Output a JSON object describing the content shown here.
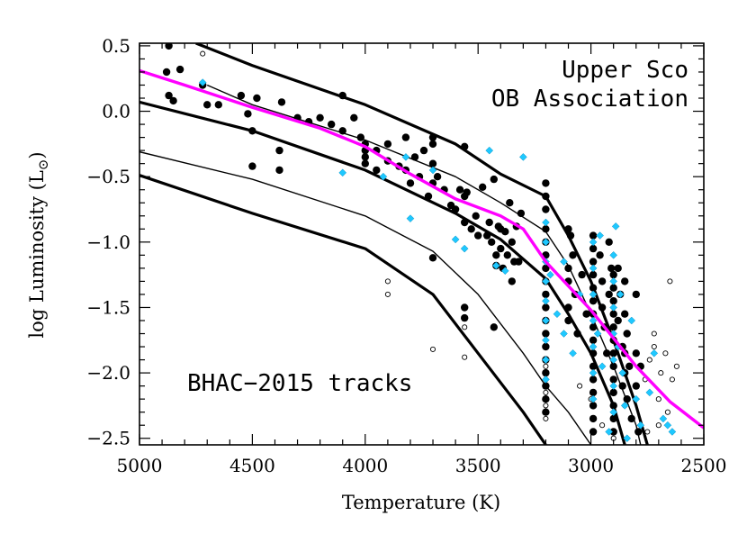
{
  "chart_data": {
    "type": "scatter",
    "title": "",
    "xlabel": "Temperature (K)",
    "ylabel_main": "log Luminosity (L",
    "ylabel_sun": "⊙",
    "ylabel_close": ")",
    "xlim": [
      5000,
      2500
    ],
    "ylim": [
      -2.55,
      0.52
    ],
    "x_reversed": true,
    "grid": false,
    "legend": "none",
    "x_ticks": [
      5000,
      4500,
      4000,
      3500,
      3000,
      2500
    ],
    "x_tick_labels": [
      "5000",
      "4500",
      "4000",
      "3500",
      "3000",
      "2500"
    ],
    "y_ticks": [
      0.5,
      0.0,
      -0.5,
      -1.0,
      -1.5,
      -2.0,
      -2.5
    ],
    "y_tick_labels": [
      "0.5",
      "0.0",
      "−0.5",
      "−1.0",
      "−1.5",
      "−2.0",
      "−2.5"
    ],
    "annotations": [
      {
        "text": "Upper Sco",
        "position": "top-right"
      },
      {
        "text": "OB Association",
        "position": "top-right"
      },
      {
        "text": "BHAC−2015 tracks",
        "position": "bottom-left"
      }
    ],
    "colors": {
      "members": "#000000",
      "diamonds": "#1ec8ff",
      "fit": "#ff00ff",
      "tracks": "#000000",
      "open": "#000000"
    },
    "tracks": [
      {
        "width": 3.2,
        "points": [
          [
            4750,
            0.52
          ],
          [
            4500,
            0.35
          ],
          [
            4000,
            0.05
          ],
          [
            3600,
            -0.25
          ],
          [
            3400,
            -0.48
          ],
          [
            3200,
            -0.65
          ],
          [
            3100,
            -0.95
          ],
          [
            3000,
            -1.3
          ],
          [
            2900,
            -1.75
          ],
          [
            2800,
            -2.25
          ],
          [
            2750,
            -2.55
          ]
        ]
      },
      {
        "width": 1.4,
        "points": [
          [
            4700,
            0.2
          ],
          [
            4500,
            0.05
          ],
          [
            4000,
            -0.22
          ],
          [
            3600,
            -0.5
          ],
          [
            3400,
            -0.7
          ],
          [
            3200,
            -0.92
          ],
          [
            3100,
            -1.18
          ],
          [
            3000,
            -1.55
          ],
          [
            2900,
            -1.95
          ],
          [
            2800,
            -2.4
          ],
          [
            2780,
            -2.55
          ]
        ]
      },
      {
        "width": 3.2,
        "points": [
          [
            5000,
            0.07
          ],
          [
            4500,
            -0.15
          ],
          [
            4000,
            -0.45
          ],
          [
            3600,
            -0.78
          ],
          [
            3400,
            -0.98
          ],
          [
            3200,
            -1.28
          ],
          [
            3100,
            -1.55
          ],
          [
            3000,
            -1.85
          ],
          [
            2900,
            -2.25
          ],
          [
            2850,
            -2.55
          ]
        ]
      },
      {
        "width": 1.4,
        "points": [
          [
            5000,
            -0.31
          ],
          [
            4500,
            -0.52
          ],
          [
            4000,
            -0.8
          ],
          [
            3700,
            -1.07
          ],
          [
            3500,
            -1.4
          ],
          [
            3300,
            -1.85
          ],
          [
            3200,
            -2.1
          ],
          [
            3100,
            -2.3
          ],
          [
            3000,
            -2.55
          ]
        ]
      },
      {
        "width": 3.2,
        "points": [
          [
            5000,
            -0.49
          ],
          [
            4500,
            -0.78
          ],
          [
            4000,
            -1.05
          ],
          [
            3700,
            -1.4
          ],
          [
            3500,
            -1.85
          ],
          [
            3300,
            -2.3
          ],
          [
            3200,
            -2.55
          ]
        ]
      }
    ],
    "fit_line": [
      [
        5000,
        0.31
      ],
      [
        4800,
        0.2
      ],
      [
        4500,
        0.03
      ],
      [
        4200,
        -0.13
      ],
      [
        4000,
        -0.27
      ],
      [
        3800,
        -0.48
      ],
      [
        3600,
        -0.67
      ],
      [
        3400,
        -0.8
      ],
      [
        3300,
        -0.9
      ],
      [
        3200,
        -1.15
      ],
      [
        3000,
        -1.52
      ],
      [
        2800,
        -1.95
      ],
      [
        2650,
        -2.22
      ],
      [
        2500,
        -2.42
      ]
    ],
    "members": [
      [
        4870,
        0.5
      ],
      [
        4820,
        0.32
      ],
      [
        4880,
        0.3
      ],
      [
        4870,
        0.12
      ],
      [
        4850,
        0.08
      ],
      [
        4700,
        0.05
      ],
      [
        4720,
        0.2
      ],
      [
        4650,
        0.05
      ],
      [
        4550,
        0.12
      ],
      [
        4520,
        -0.02
      ],
      [
        4480,
        0.1
      ],
      [
        4370,
        0.07
      ],
      [
        4500,
        -0.15
      ],
      [
        4500,
        -0.42
      ],
      [
        4380,
        -0.3
      ],
      [
        4380,
        -0.45
      ],
      [
        4300,
        -0.05
      ],
      [
        4250,
        -0.08
      ],
      [
        4200,
        -0.05
      ],
      [
        4150,
        -0.1
      ],
      [
        4100,
        0.12
      ],
      [
        4100,
        -0.15
      ],
      [
        4050,
        -0.05
      ],
      [
        4020,
        -0.2
      ],
      [
        4000,
        -0.25
      ],
      [
        4000,
        -0.3
      ],
      [
        4000,
        -0.35
      ],
      [
        4000,
        -0.4
      ],
      [
        3950,
        -0.3
      ],
      [
        3950,
        -0.45
      ],
      [
        3900,
        -0.25
      ],
      [
        3900,
        -0.38
      ],
      [
        3850,
        -0.42
      ],
      [
        3820,
        -0.2
      ],
      [
        3820,
        -0.45
      ],
      [
        3800,
        -0.55
      ],
      [
        3780,
        -0.35
      ],
      [
        3760,
        -0.5
      ],
      [
        3740,
        -0.3
      ],
      [
        3720,
        -0.65
      ],
      [
        3700,
        -0.55
      ],
      [
        3700,
        -0.2
      ],
      [
        3700,
        -0.25
      ],
      [
        3700,
        -0.4
      ],
      [
        3680,
        -0.5
      ],
      [
        3650,
        -0.6
      ],
      [
        3620,
        -0.72
      ],
      [
        3600,
        -0.75
      ],
      [
        3580,
        -0.6
      ],
      [
        3560,
        -0.27
      ],
      [
        3560,
        -0.65
      ],
      [
        3560,
        -0.85
      ],
      [
        3550,
        -0.62
      ],
      [
        3530,
        -0.9
      ],
      [
        3510,
        -0.8
      ],
      [
        3500,
        -0.95
      ],
      [
        3700,
        -1.12
      ],
      [
        3560,
        -1.5
      ],
      [
        3560,
        -1.58
      ],
      [
        3430,
        -1.65
      ],
      [
        3480,
        -0.58
      ],
      [
        3460,
        -0.95
      ],
      [
        3450,
        -0.85
      ],
      [
        3440,
        -1.0
      ],
      [
        3430,
        -0.52
      ],
      [
        3420,
        -1.1
      ],
      [
        3420,
        -1.18
      ],
      [
        3410,
        -0.88
      ],
      [
        3400,
        -0.9
      ],
      [
        3400,
        -1.05
      ],
      [
        3390,
        -1.2
      ],
      [
        3380,
        -0.92
      ],
      [
        3370,
        -1.1
      ],
      [
        3360,
        -0.7
      ],
      [
        3350,
        -1.0
      ],
      [
        3350,
        -1.3
      ],
      [
        3340,
        -1.15
      ],
      [
        3330,
        -0.88
      ],
      [
        3320,
        -1.15
      ],
      [
        3310,
        -0.78
      ],
      [
        3200,
        -0.9
      ],
      [
        3200,
        -1.0
      ],
      [
        3200,
        -1.1
      ],
      [
        3200,
        -1.2
      ],
      [
        3200,
        -1.3
      ],
      [
        3200,
        -1.4
      ],
      [
        3200,
        -1.5
      ],
      [
        3200,
        -1.6
      ],
      [
        3200,
        -1.7
      ],
      [
        3200,
        -1.8
      ],
      [
        3200,
        -1.9
      ],
      [
        3200,
        -2.0
      ],
      [
        3200,
        -2.1
      ],
      [
        3200,
        -2.2
      ],
      [
        3200,
        -2.3
      ],
      [
        3200,
        -0.55
      ],
      [
        3200,
        -0.65
      ],
      [
        3200,
        -0.75
      ],
      [
        3100,
        -0.9
      ],
      [
        3100,
        -1.2
      ],
      [
        3100,
        -1.3
      ],
      [
        3100,
        -1.5
      ],
      [
        3100,
        -1.6
      ],
      [
        3090,
        -0.95
      ],
      [
        3080,
        -1.1
      ],
      [
        3070,
        -1.4
      ],
      [
        3060,
        -1.7
      ],
      [
        3040,
        -1.25
      ],
      [
        3020,
        -1.55
      ],
      [
        2990,
        -0.95
      ],
      [
        2990,
        -1.05
      ],
      [
        2990,
        -1.15
      ],
      [
        2990,
        -1.25
      ],
      [
        2990,
        -1.35
      ],
      [
        2990,
        -1.45
      ],
      [
        2990,
        -1.55
      ],
      [
        2990,
        -1.65
      ],
      [
        2990,
        -1.75
      ],
      [
        2990,
        -1.85
      ],
      [
        2990,
        -1.95
      ],
      [
        2990,
        -2.05
      ],
      [
        2990,
        -2.15
      ],
      [
        2990,
        -2.25
      ],
      [
        2990,
        -2.35
      ],
      [
        2990,
        -2.45
      ],
      [
        2960,
        -1.1
      ],
      [
        2950,
        -1.3
      ],
      [
        2950,
        -1.5
      ],
      [
        2940,
        -1.65
      ],
      [
        2930,
        -1.85
      ],
      [
        2920,
        -1.0
      ],
      [
        2920,
        -1.4
      ],
      [
        2910,
        -1.2
      ],
      [
        2900,
        -1.25
      ],
      [
        2900,
        -1.35
      ],
      [
        2900,
        -1.45
      ],
      [
        2900,
        -1.55
      ],
      [
        2900,
        -1.65
      ],
      [
        2900,
        -1.75
      ],
      [
        2900,
        -1.85
      ],
      [
        2900,
        -1.95
      ],
      [
        2900,
        -2.05
      ],
      [
        2900,
        -2.15
      ],
      [
        2900,
        -2.25
      ],
      [
        2900,
        -2.35
      ],
      [
        2900,
        -2.45
      ],
      [
        2880,
        -1.2
      ],
      [
        2880,
        -1.6
      ],
      [
        2870,
        -1.4
      ],
      [
        2860,
        -1.8
      ],
      [
        2860,
        -2.1
      ],
      [
        2850,
        -1.3
      ],
      [
        2850,
        -1.55
      ],
      [
        2850,
        -1.85
      ],
      [
        2850,
        -2.0
      ],
      [
        2840,
        -1.7
      ],
      [
        2840,
        -2.2
      ],
      [
        2830,
        -1.95
      ],
      [
        2820,
        -2.35
      ],
      [
        2800,
        -1.4
      ],
      [
        2800,
        -1.85
      ],
      [
        2800,
        -2.1
      ],
      [
        2790,
        -2.45
      ],
      [
        2780,
        -1.95
      ]
    ],
    "diamonds": [
      [
        4720,
        0.22
      ],
      [
        4100,
        -0.47
      ],
      [
        3920,
        -0.5
      ],
      [
        3820,
        -0.35
      ],
      [
        3800,
        -0.82
      ],
      [
        3700,
        -0.45
      ],
      [
        3600,
        -0.98
      ],
      [
        3560,
        -1.05
      ],
      [
        3450,
        -0.3
      ],
      [
        3300,
        -0.35
      ],
      [
        3380,
        -1.22
      ],
      [
        3420,
        -1.18
      ],
      [
        3200,
        -0.85
      ],
      [
        3200,
        -1.0
      ],
      [
        3200,
        -1.15
      ],
      [
        3200,
        -1.3
      ],
      [
        3200,
        -1.45
      ],
      [
        3200,
        -1.6
      ],
      [
        3200,
        -1.75
      ],
      [
        3200,
        -1.9
      ],
      [
        3200,
        -2.05
      ],
      [
        3180,
        -1.25
      ],
      [
        3150,
        -1.55
      ],
      [
        3120,
        -1.15
      ],
      [
        3120,
        -1.7
      ],
      [
        3080,
        -1.85
      ],
      [
        3050,
        -1.4
      ],
      [
        2990,
        -1.0
      ],
      [
        2990,
        -1.2
      ],
      [
        2990,
        -1.4
      ],
      [
        2990,
        -1.6
      ],
      [
        2990,
        -1.8
      ],
      [
        2990,
        -2.0
      ],
      [
        2990,
        -2.2
      ],
      [
        2970,
        -1.7
      ],
      [
        2960,
        -0.95
      ],
      [
        2950,
        -1.95
      ],
      [
        2920,
        -2.45
      ],
      [
        2900,
        -1.1
      ],
      [
        2900,
        -1.3
      ],
      [
        2900,
        -1.5
      ],
      [
        2900,
        -1.7
      ],
      [
        2900,
        -1.9
      ],
      [
        2900,
        -2.1
      ],
      [
        2900,
        -2.3
      ],
      [
        2890,
        -0.88
      ],
      [
        2880,
        -1.8
      ],
      [
        2870,
        -1.4
      ],
      [
        2860,
        -2.0
      ],
      [
        2850,
        -2.25
      ],
      [
        2840,
        -2.5
      ],
      [
        2820,
        -1.6
      ],
      [
        2800,
        -2.2
      ],
      [
        2780,
        -2.4
      ],
      [
        2740,
        -2.15
      ],
      [
        2680,
        -2.35
      ],
      [
        2660,
        -2.4
      ],
      [
        2640,
        -2.45
      ],
      [
        2720,
        -1.85
      ]
    ],
    "open": [
      [
        4720,
        0.44
      ],
      [
        3900,
        -1.3
      ],
      [
        3900,
        -1.4
      ],
      [
        3700,
        -1.82
      ],
      [
        3560,
        -1.65
      ],
      [
        3560,
        -1.88
      ],
      [
        3200,
        -1.95
      ],
      [
        3200,
        -2.05
      ],
      [
        3200,
        -2.15
      ],
      [
        3200,
        -2.25
      ],
      [
        3200,
        -2.35
      ],
      [
        3050,
        -2.1
      ],
      [
        3000,
        -2.2
      ],
      [
        2950,
        -2.4
      ],
      [
        2900,
        -2.5
      ],
      [
        2850,
        -2.25
      ],
      [
        2820,
        -2.35
      ],
      [
        2800,
        -2.1
      ],
      [
        2780,
        -1.95
      ],
      [
        2760,
        -2.05
      ],
      [
        2740,
        -1.9
      ],
      [
        2720,
        -1.7
      ],
      [
        2720,
        -1.8
      ],
      [
        2700,
        -2.2
      ],
      [
        2690,
        -2.0
      ],
      [
        2670,
        -1.85
      ],
      [
        2660,
        -2.3
      ],
      [
        2650,
        -1.3
      ],
      [
        2640,
        -2.05
      ],
      [
        2620,
        -1.95
      ],
      [
        2700,
        -2.4
      ],
      [
        2750,
        -2.45
      ]
    ]
  }
}
